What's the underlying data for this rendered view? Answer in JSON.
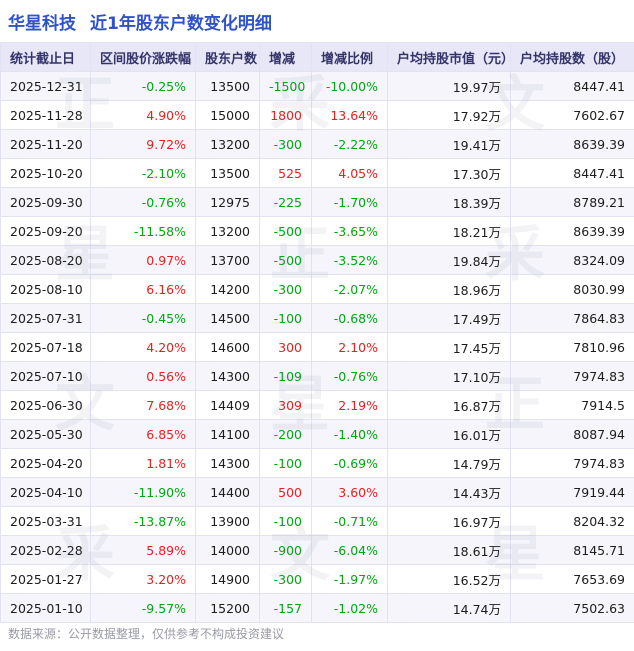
{
  "title": {
    "company": "华星科技",
    "subtitle": "近1年股东户数变化明细"
  },
  "watermark": "正采文星",
  "footer": "数据来源：公开数据整理，仅供参考不构成投资建议",
  "colors": {
    "title_blue": "#2f52c8",
    "header_bg": "#e7e7f7",
    "header_text": "#33336a",
    "positive_red": "#ea1f1f",
    "negative_green": "#00a810"
  },
  "chart_data": {
    "type": "table",
    "title": "华星科技 近1年股东户数变化明细",
    "columns": [
      "统计截止日",
      "区间股价涨跌幅",
      "股东户数",
      "增减",
      "增减比例",
      "户均持股市值（元）",
      "户均持股数（股）"
    ],
    "signed_columns": [
      1,
      3,
      4
    ],
    "rows": [
      [
        "2025-12-31",
        "-0.25%",
        "13500",
        "-1500",
        "-10.00%",
        "19.97万",
        "8447.41"
      ],
      [
        "2025-11-28",
        "4.90%",
        "15000",
        "1800",
        "13.64%",
        "17.92万",
        "7602.67"
      ],
      [
        "2025-11-20",
        "9.72%",
        "13200",
        "-300",
        "-2.22%",
        "19.41万",
        "8639.39"
      ],
      [
        "2025-10-20",
        "-2.10%",
        "13500",
        "525",
        "4.05%",
        "17.30万",
        "8447.41"
      ],
      [
        "2025-09-30",
        "-0.76%",
        "12975",
        "-225",
        "-1.70%",
        "18.39万",
        "8789.21"
      ],
      [
        "2025-09-20",
        "-11.58%",
        "13200",
        "-500",
        "-3.65%",
        "18.21万",
        "8639.39"
      ],
      [
        "2025-08-20",
        "0.97%",
        "13700",
        "-500",
        "-3.52%",
        "19.84万",
        "8324.09"
      ],
      [
        "2025-08-10",
        "6.16%",
        "14200",
        "-300",
        "-2.07%",
        "18.96万",
        "8030.99"
      ],
      [
        "2025-07-31",
        "-0.45%",
        "14500",
        "-100",
        "-0.68%",
        "17.49万",
        "7864.83"
      ],
      [
        "2025-07-18",
        "4.20%",
        "14600",
        "300",
        "2.10%",
        "17.45万",
        "7810.96"
      ],
      [
        "2025-07-10",
        "0.56%",
        "14300",
        "-109",
        "-0.76%",
        "17.10万",
        "7974.83"
      ],
      [
        "2025-06-30",
        "7.68%",
        "14409",
        "309",
        "2.19%",
        "16.87万",
        "7914.5"
      ],
      [
        "2025-05-30",
        "6.85%",
        "14100",
        "-200",
        "-1.40%",
        "16.01万",
        "8087.94"
      ],
      [
        "2025-04-20",
        "1.81%",
        "14300",
        "-100",
        "-0.69%",
        "14.79万",
        "7974.83"
      ],
      [
        "2025-04-10",
        "-11.90%",
        "14400",
        "500",
        "3.60%",
        "14.43万",
        "7919.44"
      ],
      [
        "2025-03-31",
        "-13.87%",
        "13900",
        "-100",
        "-0.71%",
        "16.97万",
        "8204.32"
      ],
      [
        "2025-02-28",
        "5.89%",
        "14000",
        "-900",
        "-6.04%",
        "18.61万",
        "8145.71"
      ],
      [
        "2025-01-27",
        "3.20%",
        "14900",
        "-300",
        "-1.97%",
        "16.52万",
        "7653.69"
      ],
      [
        "2025-01-10",
        "-9.57%",
        "15200",
        "-157",
        "-1.02%",
        "14.74万",
        "7502.63"
      ]
    ]
  }
}
